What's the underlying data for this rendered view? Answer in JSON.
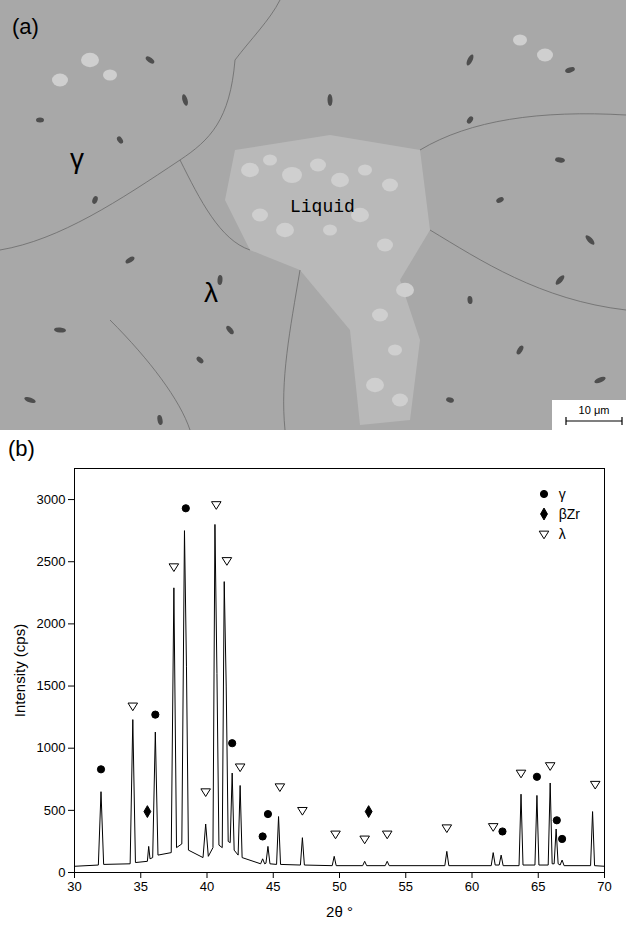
{
  "figure": {
    "panel_a": {
      "letter": "(a)",
      "labels": [
        "γ",
        "λ",
        "Liquid"
      ],
      "scale_bar": "10 μm"
    }
  },
  "chart_data": {
    "type": "line",
    "panel_label": "(b)",
    "x_label": "2θ °",
    "y_label": "Intensity (cps)",
    "xlim": [
      30,
      70
    ],
    "xticks": [
      30,
      35,
      40,
      45,
      50,
      55,
      60,
      65,
      70
    ],
    "ylim": [
      0,
      3250
    ],
    "yticks": [
      0,
      500,
      1000,
      1500,
      2000,
      2500,
      3000
    ],
    "grid": false,
    "legend": "upper right",
    "series": [
      {
        "type": "line",
        "color": "#000000",
        "line_style": "solid",
        "x": [
          30,
          31.8,
          32.0,
          32.2,
          34.2,
          34.4,
          34.6,
          35.5,
          35.6,
          35.7,
          35.9,
          36.1,
          36.3,
          37.3,
          37.5,
          37.7,
          38.1,
          38.3,
          38.45,
          38.6,
          39.7,
          39.9,
          40.1,
          40.45,
          40.6,
          40.75,
          40.9,
          41.15,
          41.3,
          41.45,
          41.6,
          41.75,
          41.9,
          42.05,
          42.35,
          42.5,
          42.65,
          44.05,
          44.2,
          44.35,
          44.45,
          44.6,
          44.75,
          45.25,
          45.4,
          45.55,
          47.05,
          47.2,
          47.35,
          49.45,
          49.6,
          49.75,
          51.75,
          51.9,
          52.05,
          53.45,
          53.6,
          53.75,
          57.95,
          58.1,
          58.25,
          61.45,
          61.6,
          61.75,
          62.05,
          62.2,
          62.35,
          63.55,
          63.7,
          63.85,
          64.75,
          64.9,
          65.05,
          65.75,
          65.9,
          66.05,
          66.2,
          66.35,
          66.5,
          66.65,
          66.8,
          66.95,
          68.95,
          69.1,
          69.25,
          70
        ],
        "values": [
          50,
          60,
          650,
          65,
          70,
          1230,
          80,
          90,
          210,
          110,
          120,
          1130,
          140,
          160,
          2290,
          200,
          230,
          2750,
          1660,
          180,
          120,
          390,
          130,
          200,
          2800,
          1600,
          220,
          200,
          2340,
          1500,
          250,
          240,
          800,
          180,
          140,
          700,
          120,
          70,
          110,
          70,
          75,
          210,
          70,
          65,
          450,
          65,
          60,
          280,
          60,
          55,
          130,
          55,
          55,
          90,
          55,
          55,
          90,
          55,
          55,
          170,
          55,
          55,
          160,
          60,
          60,
          140,
          55,
          55,
          630,
          60,
          60,
          620,
          60,
          60,
          720,
          70,
          70,
          350,
          70,
          60,
          100,
          55,
          55,
          490,
          55,
          50
        ]
      },
      {
        "name": "γ",
        "type": "scatter",
        "marker": "circle",
        "color": "#000000",
        "x": [
          32.0,
          36.1,
          38.4,
          41.9,
          44.2,
          44.6,
          62.3,
          64.9,
          66.4,
          66.8
        ],
        "values": [
          830,
          1270,
          2930,
          1040,
          290,
          470,
          330,
          770,
          420,
          270
        ]
      },
      {
        "name": "βZr",
        "type": "scatter",
        "marker": "diamond",
        "color": "#000000",
        "x": [
          35.5,
          52.2
        ],
        "values": [
          490,
          490
        ]
      },
      {
        "name": "λ",
        "type": "scatter",
        "marker": "open-triangle-down",
        "color": "#000000",
        "x": [
          34.4,
          37.5,
          39.9,
          40.7,
          41.5,
          42.5,
          45.5,
          47.2,
          49.7,
          51.9,
          53.6,
          58.1,
          61.6,
          63.7,
          65.9,
          69.3
        ],
        "values": [
          1340,
          2460,
          650,
          2960,
          2510,
          850,
          690,
          500,
          310,
          270,
          310,
          360,
          370,
          800,
          860,
          710
        ]
      }
    ]
  }
}
